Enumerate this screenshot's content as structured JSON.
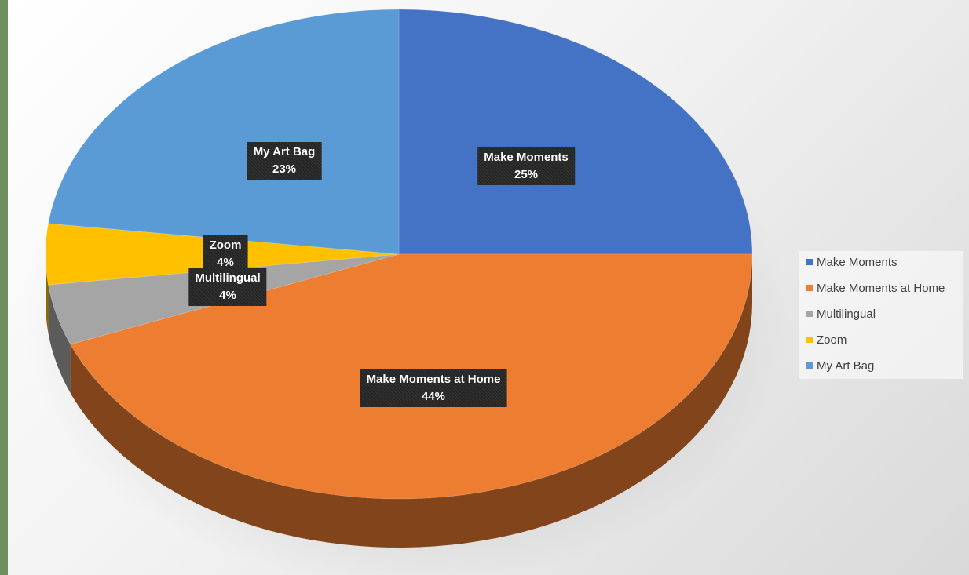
{
  "chart_data": {
    "type": "pie",
    "style": "3d",
    "slices": [
      {
        "label": "Make Moments",
        "value": 25,
        "value_label": "25%",
        "color": "#4472c4"
      },
      {
        "label": "Make Moments at Home",
        "value": 44,
        "value_label": "44%",
        "color": "#ed7d31"
      },
      {
        "label": "Multilingual",
        "value": 4,
        "value_label": "4%",
        "color": "#a5a5a5"
      },
      {
        "label": "Zoom",
        "value": 4,
        "value_label": "4%",
        "color": "#ffc000"
      },
      {
        "label": "My Art Bag",
        "value": 23,
        "value_label": "23%",
        "color": "#5b9bd5"
      }
    ],
    "legend_position": "right"
  }
}
